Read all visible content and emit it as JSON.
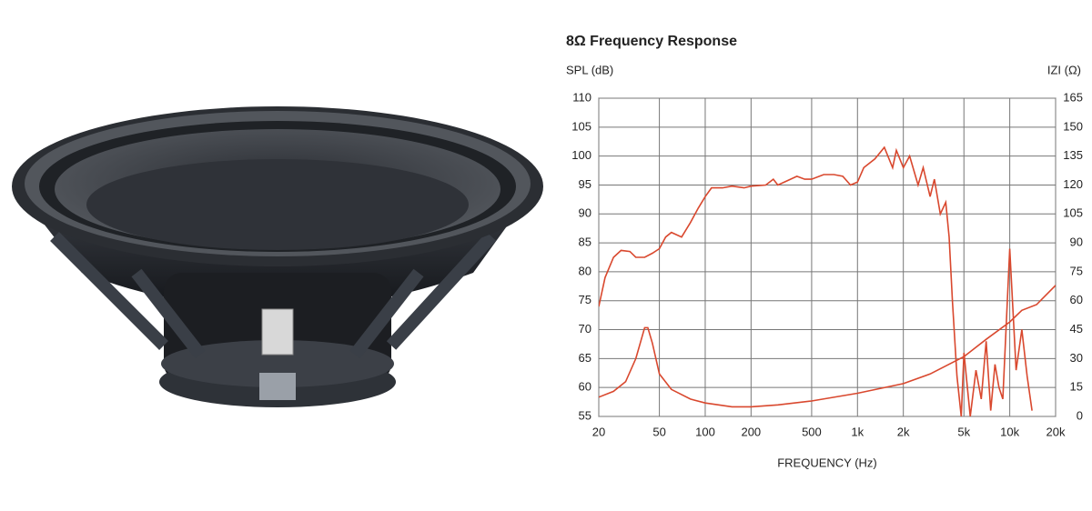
{
  "chart_data": {
    "type": "line",
    "title": "8Ω Frequency Response",
    "ylabel": "SPL (dB)",
    "y2label": "IZI (Ω)",
    "xlabel": "FREQUENCY (Hz)",
    "xscale": "log",
    "grid": true,
    "xlim": [
      20,
      20000
    ],
    "xticks": [
      20,
      50,
      100,
      200,
      500,
      {
        "value": 1000,
        "label": "1k"
      },
      {
        "value": 2000,
        "label": "2k"
      },
      {
        "value": 5000,
        "label": "5k"
      },
      {
        "value": 10000,
        "label": "10k"
      },
      {
        "value": 20000,
        "label": "20k"
      }
    ],
    "ylim": [
      55,
      110
    ],
    "yticks": [
      55,
      60,
      65,
      70,
      75,
      80,
      85,
      90,
      95,
      100,
      105,
      110
    ],
    "y2lim": [
      0,
      165
    ],
    "y2ticks": [
      0,
      15,
      30,
      45,
      60,
      75,
      90,
      105,
      120,
      135,
      150,
      165
    ],
    "series": [
      {
        "color": "#d9482e",
        "x": [
          20,
          22,
          25,
          28,
          32,
          35,
          40,
          45,
          50,
          55,
          60,
          70,
          80,
          90,
          100,
          110,
          130,
          150,
          180,
          200,
          250,
          280,
          300,
          350,
          400,
          450,
          500,
          600,
          700,
          800,
          900,
          1000,
          1100,
          1300,
          1500,
          1700,
          1800,
          2000,
          2200,
          2500,
          2700,
          3000,
          3200,
          3500,
          3800,
          4000,
          4200,
          4500,
          4800,
          5000,
          5500,
          6000,
          6500,
          7000,
          7500,
          8000,
          8500,
          9000,
          10000,
          11000,
          12000,
          13000,
          14000
        ],
        "values": [
          74,
          79,
          82.5,
          83.7,
          83.5,
          82.5,
          82.5,
          83.2,
          84,
          86,
          86.8,
          86,
          88.5,
          91,
          93,
          94.5,
          94.5,
          94.8,
          94.5,
          94.8,
          95,
          96,
          95,
          95.8,
          96.5,
          96,
          96,
          96.8,
          96.8,
          96.5,
          95,
          95.5,
          98,
          99.5,
          101.5,
          98,
          101,
          98,
          100,
          95,
          98,
          93,
          96,
          90,
          92,
          86,
          75,
          62,
          55,
          66,
          55,
          63,
          58,
          68,
          56,
          64,
          60,
          58,
          84,
          63,
          70,
          62,
          56
        ]
      },
      {
        "color": "#d9482e",
        "axis": "y2",
        "x": [
          20,
          25,
          30,
          35,
          40,
          42,
          45,
          50,
          60,
          80,
          100,
          150,
          200,
          300,
          500,
          1000,
          2000,
          3000,
          5000,
          7000,
          10000,
          12000,
          15000,
          20000
        ],
        "values": [
          10,
          13,
          18,
          30,
          46,
          46,
          38,
          22,
          14,
          9,
          7,
          5,
          5,
          6,
          8,
          12,
          17,
          22,
          31,
          40,
          49,
          55,
          58,
          68
        ]
      }
    ]
  }
}
